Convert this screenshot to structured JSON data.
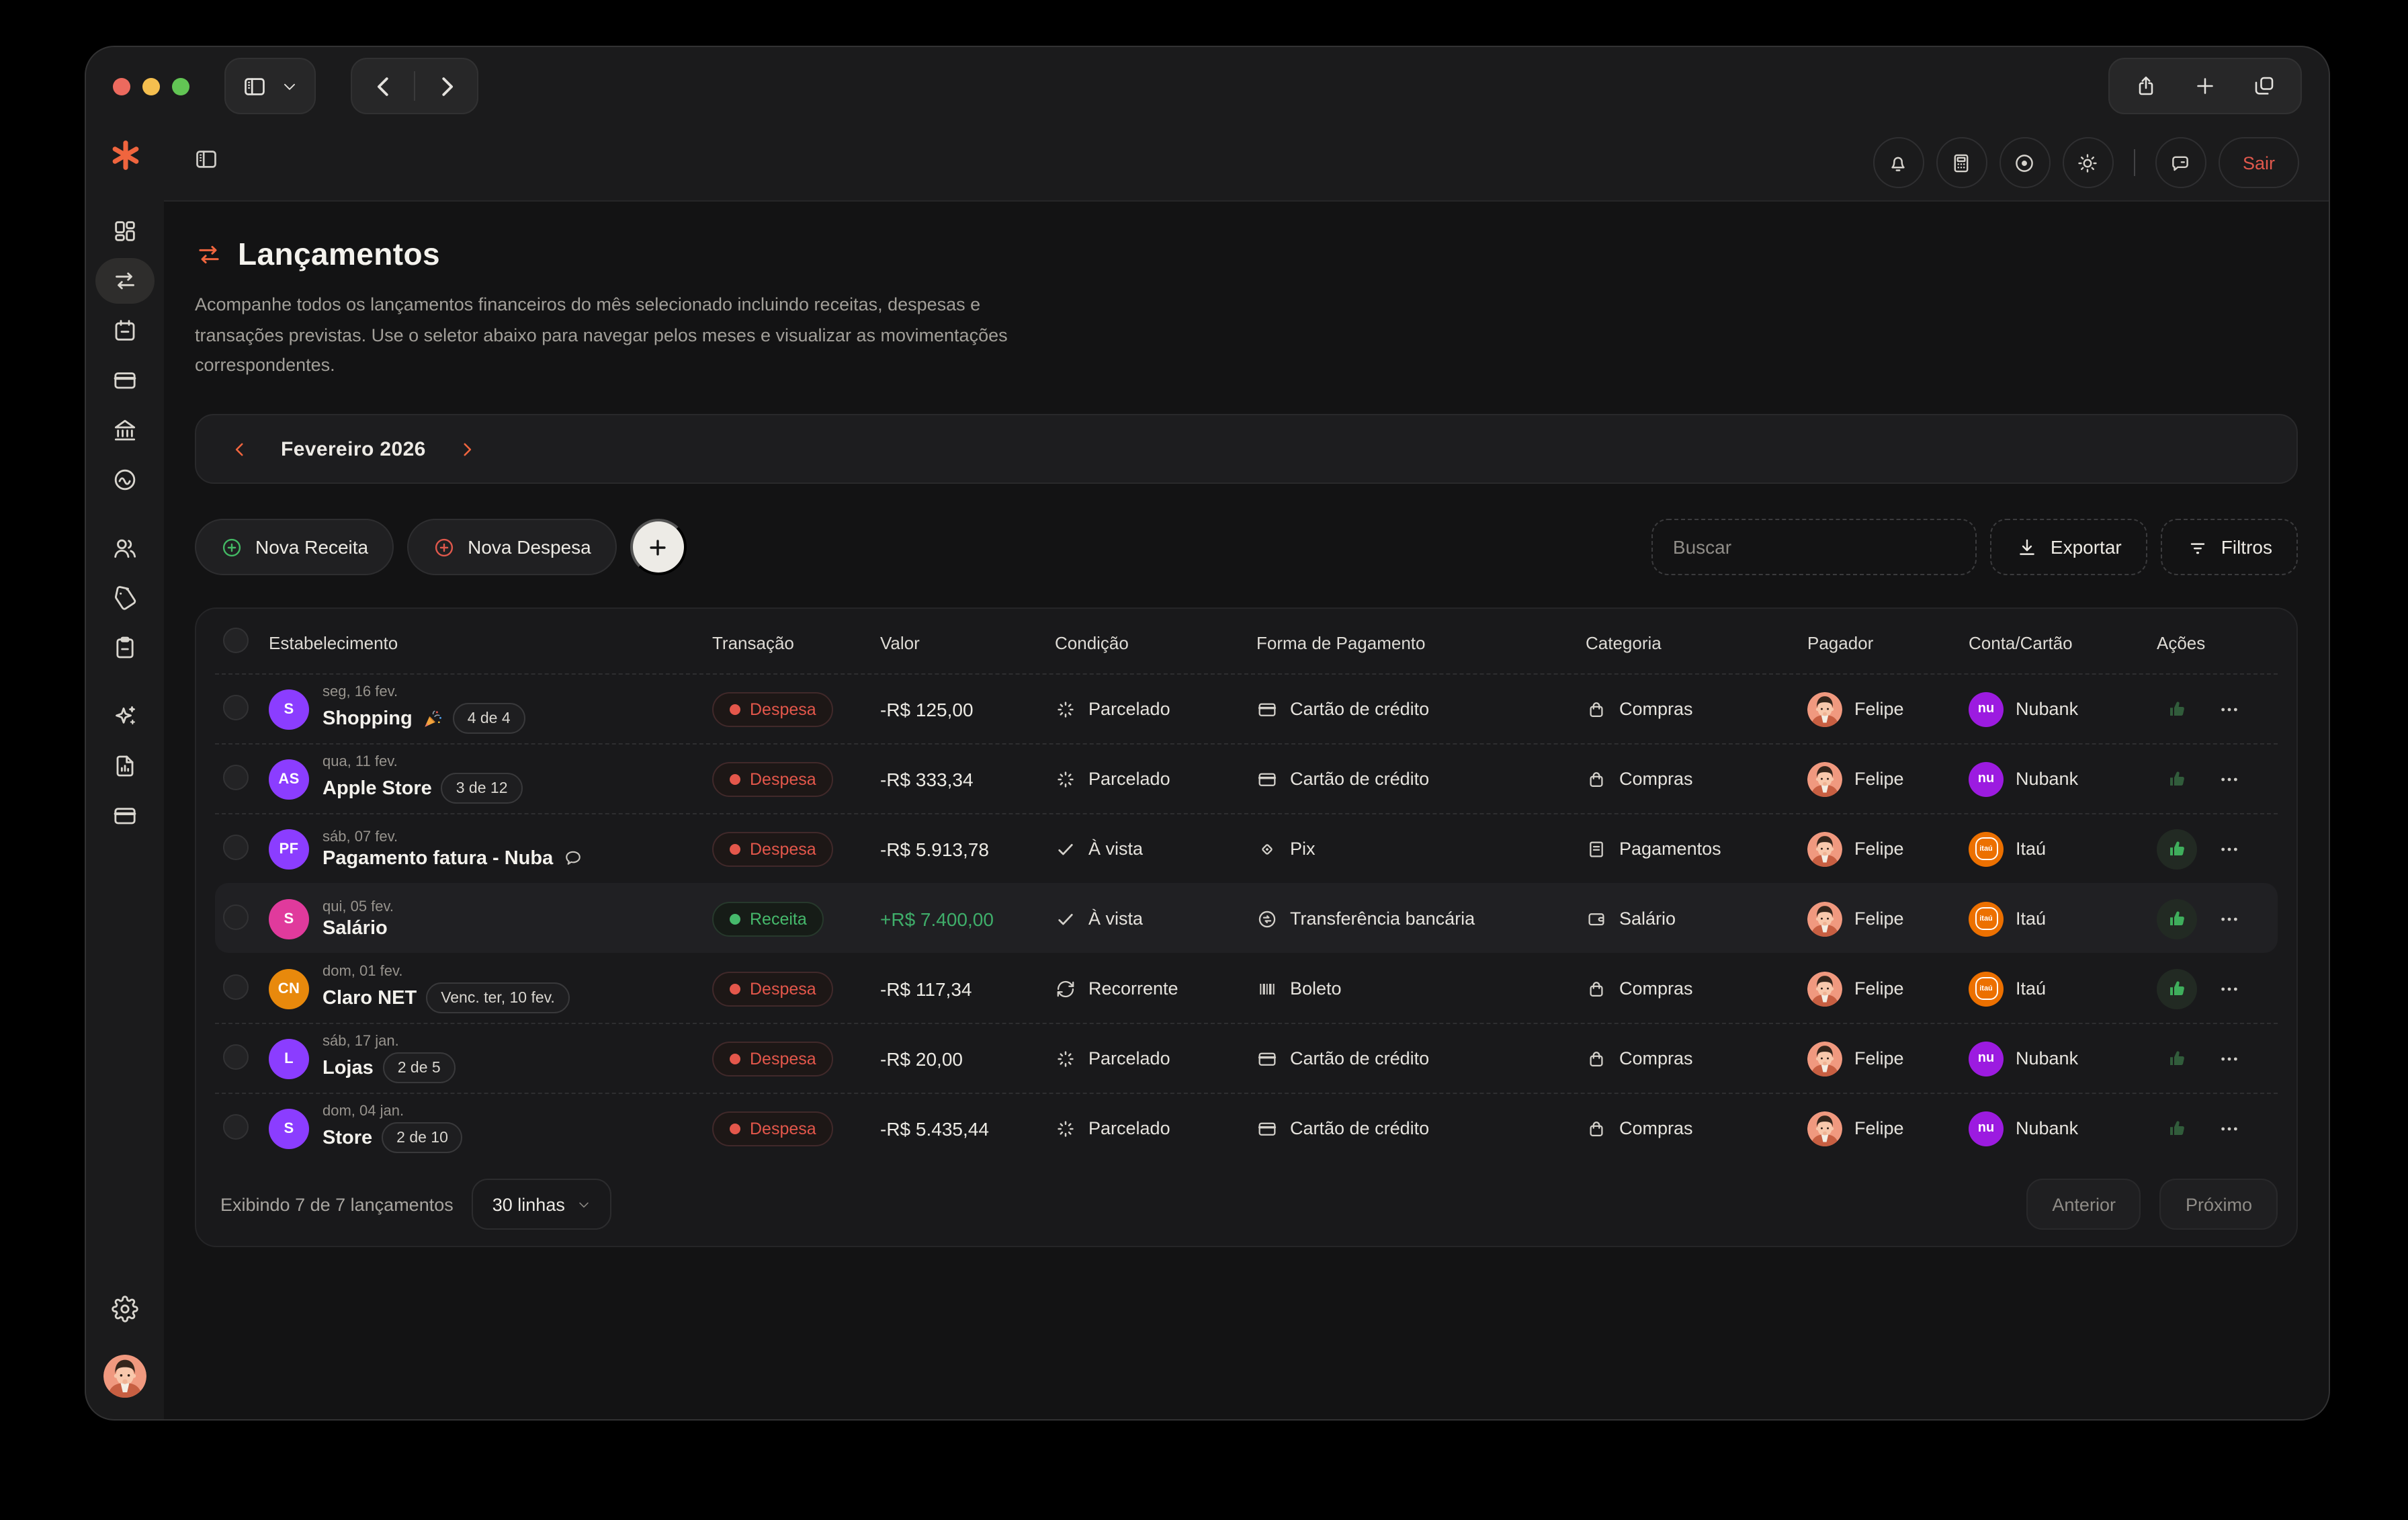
{
  "colors": {
    "accent_orange": "#F0653E",
    "expense_red": "#E4574B",
    "income_green": "#46B96C",
    "value_green": "#3FAE6A",
    "nubank_purple": "#9C1BE0",
    "itau_orange": "#EC7000"
  },
  "titlebar": {
    "right_icons": [
      "share-icon",
      "plus-icon",
      "tabs-icon"
    ]
  },
  "app_header": {
    "icons": [
      "bell-icon",
      "calculator-icon",
      "eye-icon",
      "sun-icon",
      "chat-icon"
    ],
    "logout_label": "Sair"
  },
  "sidebar": {
    "logo": "asterisk-logo",
    "groups": [
      [
        "dashboard-icon",
        "transactions-icon",
        "calendar-icon",
        "credit-card-icon",
        "bank-icon",
        "trend-icon"
      ],
      [
        "users-icon",
        "tag-icon",
        "clipboard-icon"
      ],
      [
        "sparkles-icon",
        "report-icon",
        "card-icon"
      ]
    ],
    "active_icon": "transactions-icon",
    "bottom": [
      "gear-icon",
      "user-avatar"
    ]
  },
  "page": {
    "title": "Lançamentos",
    "description": "Acompanhe todos os lançamentos financeiros do mês selecionado incluindo receitas, despesas e transações previstas. Use o seletor abaixo para navegar pelos meses e visualizar as movimentações correspondentes.",
    "month_selector": {
      "label": "Fevereiro 2026"
    },
    "actions": {
      "new_income_label": "Nova Receita",
      "new_expense_label": "Nova Despesa",
      "search_placeholder": "Buscar",
      "export_label": "Exportar",
      "filters_label": "Filtros"
    }
  },
  "table": {
    "headers": [
      "Estabelecimento",
      "Transação",
      "Valor",
      "Condição",
      "Forma de Pagamento",
      "Categoria",
      "Pagador",
      "Conta/Cartão",
      "Ações"
    ],
    "rows": [
      {
        "avatar": "S",
        "avatar_color": "#8B3DFF",
        "date": "seg, 16 fev.",
        "name": "Shopping",
        "emoji": "party-icon",
        "pill": "4 de 4",
        "type": "Despesa",
        "value": "-R$ 125,00",
        "positive": false,
        "condition": "Parcelado",
        "condition_icon": "loader-icon",
        "payment": "Cartão de crédito",
        "payment_icon": "credit-card-icon",
        "category": "Compras",
        "category_icon": "bag-icon",
        "payer": "Felipe",
        "account": "Nubank",
        "account_brand": "nubank",
        "thumb_bright": false,
        "highlight": false
      },
      {
        "avatar": "AS",
        "avatar_color": "#8B3DFF",
        "date": "qua, 11 fev.",
        "name": "Apple Store",
        "pill": "3 de 12",
        "type": "Despesa",
        "value": "-R$ 333,34",
        "positive": false,
        "condition": "Parcelado",
        "condition_icon": "loader-icon",
        "payment": "Cartão de crédito",
        "payment_icon": "credit-card-icon",
        "category": "Compras",
        "category_icon": "bag-icon",
        "payer": "Felipe",
        "account": "Nubank",
        "account_brand": "nubank",
        "thumb_bright": false,
        "highlight": false
      },
      {
        "avatar": "PF",
        "avatar_color": "#8B3DFF",
        "date": "sáb, 07 fev.",
        "name": "Pagamento fatura - Nuba",
        "comment": true,
        "type": "Despesa",
        "value": "-R$ 5.913,78",
        "positive": false,
        "condition": "À vista",
        "condition_icon": "check-icon",
        "payment": "Pix",
        "payment_icon": "pix-icon",
        "category": "Pagamentos",
        "category_icon": "receipt-icon",
        "payer": "Felipe",
        "account": "Itaú",
        "account_brand": "itau",
        "thumb_bright": true,
        "highlight": false
      },
      {
        "avatar": "S",
        "avatar_color": "#E03A9C",
        "date": "qui, 05 fev.",
        "name": "Salário",
        "type": "Receita",
        "value": "+R$ 7.400,00",
        "positive": true,
        "condition": "À vista",
        "condition_icon": "check-icon",
        "payment": "Transferência bancária",
        "payment_icon": "transfer-icon",
        "category": "Salário",
        "category_icon": "wallet-icon",
        "payer": "Felipe",
        "account": "Itaú",
        "account_brand": "itau",
        "thumb_bright": true,
        "highlight": true
      },
      {
        "avatar": "CN",
        "avatar_color": "#E8890C",
        "date": "dom, 01 fev.",
        "name": "Claro NET",
        "pill": "Venc. ter, 10 fev.",
        "type": "Despesa",
        "value": "-R$ 117,34",
        "positive": false,
        "condition": "Recorrente",
        "condition_icon": "refresh-icon",
        "payment": "Boleto",
        "payment_icon": "barcode-icon",
        "category": "Compras",
        "category_icon": "bag-icon",
        "payer": "Felipe",
        "account": "Itaú",
        "account_brand": "itau",
        "thumb_bright": true,
        "highlight": false
      },
      {
        "avatar": "L",
        "avatar_color": "#8B3DFF",
        "date": "sáb, 17 jan.",
        "name": "Lojas",
        "pill": "2 de 5",
        "type": "Despesa",
        "value": "-R$ 20,00",
        "positive": false,
        "condition": "Parcelado",
        "condition_icon": "loader-icon",
        "payment": "Cartão de crédito",
        "payment_icon": "credit-card-icon",
        "category": "Compras",
        "category_icon": "bag-icon",
        "payer": "Felipe",
        "account": "Nubank",
        "account_brand": "nubank",
        "thumb_bright": false,
        "highlight": false
      },
      {
        "avatar": "S",
        "avatar_color": "#8B3DFF",
        "date": "dom, 04 jan.",
        "name": "Store",
        "pill": "2 de 10",
        "type": "Despesa",
        "value": "-R$ 5.435,44",
        "positive": false,
        "condition": "Parcelado",
        "condition_icon": "loader-icon",
        "payment": "Cartão de crédito",
        "payment_icon": "credit-card-icon",
        "category": "Compras",
        "category_icon": "bag-icon",
        "payer": "Felipe",
        "account": "Nubank",
        "account_brand": "nubank",
        "thumb_bright": false,
        "highlight": false
      }
    ],
    "footer": {
      "summary": "Exibindo 7 de 7 lançamentos",
      "rows_per_page": "30 linhas",
      "prev_label": "Anterior",
      "next_label": "Próximo"
    }
  }
}
